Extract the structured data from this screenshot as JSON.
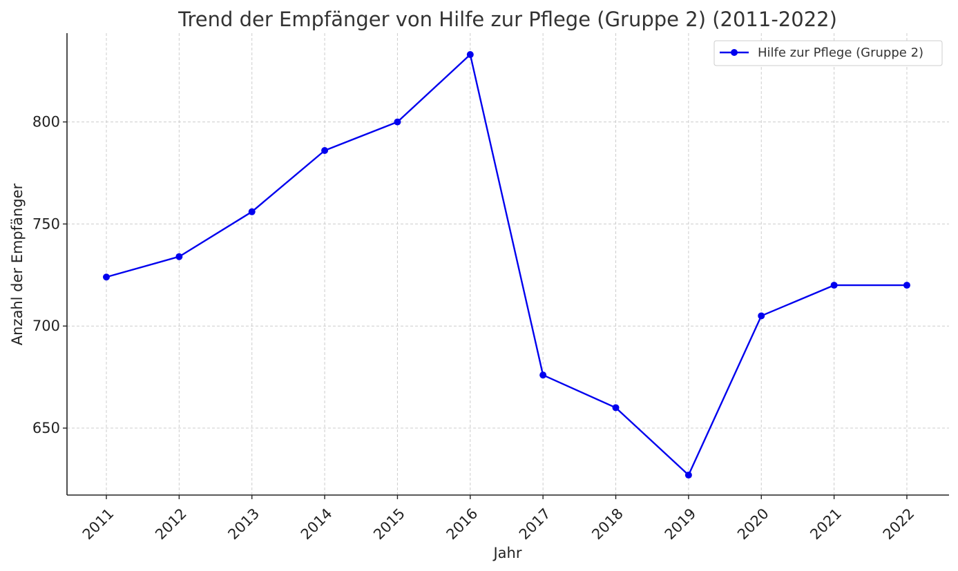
{
  "chart_data": {
    "type": "line",
    "title": "Trend der Empfänger von Hilfe zur Pflege (Gruppe 2) (2011-2022)",
    "xlabel": "Jahr",
    "ylabel": "Anzahl der Empfänger",
    "x": [
      "2011",
      "2012",
      "2013",
      "2014",
      "2015",
      "2016",
      "2017",
      "2018",
      "2019",
      "2020",
      "2021",
      "2022"
    ],
    "series": [
      {
        "name": "Hilfe zur Pflege (Gruppe 2)",
        "color": "#0000ee",
        "marker": "circle",
        "values": [
          724,
          734,
          756,
          786,
          800,
          833,
          676,
          660,
          627,
          705,
          720,
          720
        ]
      }
    ],
    "yticks": [
      650,
      700,
      750,
      800
    ],
    "ylim": [
      617.2,
      843.5
    ],
    "grid": true,
    "legend_position": "top-right"
  }
}
